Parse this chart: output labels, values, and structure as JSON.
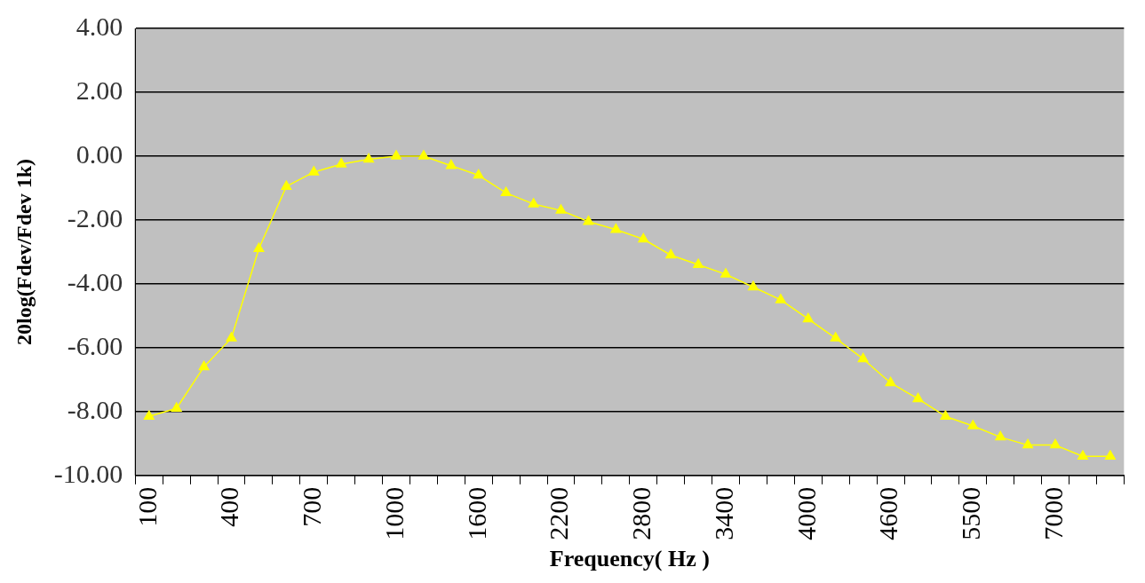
{
  "chart_data": {
    "type": "line",
    "xlabel": "Frequency( Hz )",
    "ylabel": "20log(Fdev/Fdev 1k)",
    "categories": [
      "100",
      null,
      null,
      "400",
      null,
      null,
      "700",
      null,
      null,
      "1000",
      null,
      null,
      "1600",
      null,
      null,
      "2200",
      null,
      null,
      "2800",
      null,
      null,
      "3400",
      null,
      null,
      "4000",
      null,
      null,
      "4600",
      null,
      null,
      "5500",
      null,
      null,
      "7000",
      null,
      null
    ],
    "series": [
      {
        "color": "#ffff00",
        "values": [
          -8.15,
          -7.9,
          -6.6,
          -5.7,
          -2.9,
          -0.95,
          -0.5,
          -0.25,
          -0.1,
          0,
          0,
          -0.3,
          -0.6,
          -1.15,
          -1.5,
          -1.7,
          -2.05,
          -2.3,
          -2.6,
          -3.1,
          -3.4,
          -3.7,
          -4.1,
          -4.5,
          -5.1,
          -5.7,
          -6.35,
          -7.1,
          -7.6,
          -8.15,
          -8.45,
          -8.8,
          -9.05,
          -9.05,
          -9.4,
          -9.4
        ]
      }
    ],
    "ylim": [
      -10,
      4
    ],
    "yticks": [
      {
        "value": -10,
        "label": "-10.00"
      },
      {
        "value": -8,
        "label": "-8.00"
      },
      {
        "value": -6,
        "label": "-6.00"
      },
      {
        "value": -4,
        "label": "-4.00"
      },
      {
        "value": -2,
        "label": "-2.00"
      },
      {
        "value": 0,
        "label": "0.00"
      },
      {
        "value": 2,
        "label": "2.00"
      },
      {
        "value": 4,
        "label": "4.00"
      }
    ],
    "grid": "y",
    "legend": false,
    "marker": "triangle",
    "line_style": "solid"
  }
}
